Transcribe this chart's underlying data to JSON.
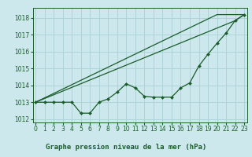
{
  "title": "Graphe pression niveau de la mer (hPa)",
  "bg_color": "#cce8ec",
  "grid_color": "#aed4d8",
  "line_color": "#1a5c2a",
  "x_ticks": [
    0,
    1,
    2,
    3,
    4,
    5,
    6,
    7,
    8,
    9,
    10,
    11,
    12,
    13,
    14,
    15,
    16,
    17,
    18,
    19,
    20,
    21,
    22,
    23
  ],
  "y_ticks": [
    1012,
    1013,
    1014,
    1015,
    1016,
    1017,
    1018
  ],
  "ylim": [
    1011.8,
    1018.6
  ],
  "xlim": [
    -0.3,
    23.3
  ],
  "series_straight1": [
    1013.0,
    1013.26,
    1013.52,
    1013.78,
    1014.04,
    1014.3,
    1014.56,
    1014.82,
    1015.08,
    1015.34,
    1015.6,
    1015.86,
    1016.12,
    1016.38,
    1016.64,
    1016.9,
    1017.16,
    1017.42,
    1017.68,
    1017.94,
    1018.2,
    1018.2,
    1018.2,
    1018.2
  ],
  "series_straight2": [
    1013.0,
    1013.22,
    1013.44,
    1013.66,
    1013.88,
    1014.1,
    1014.32,
    1014.54,
    1014.76,
    1014.98,
    1015.2,
    1015.42,
    1015.64,
    1015.86,
    1016.08,
    1016.3,
    1016.52,
    1016.74,
    1016.96,
    1017.18,
    1017.4,
    1017.62,
    1017.84,
    1018.2
  ],
  "series_jagged": [
    1013.0,
    1013.0,
    1013.0,
    1013.0,
    1013.0,
    1012.35,
    1012.35,
    1013.0,
    1013.2,
    1013.6,
    1014.1,
    1013.85,
    1013.35,
    1013.3,
    1013.3,
    1013.3,
    1013.85,
    1014.15,
    1015.15,
    1015.85,
    1016.5,
    1017.1,
    1017.85,
    1018.2
  ],
  "figsize": [
    3.2,
    2.0
  ],
  "dpi": 100
}
